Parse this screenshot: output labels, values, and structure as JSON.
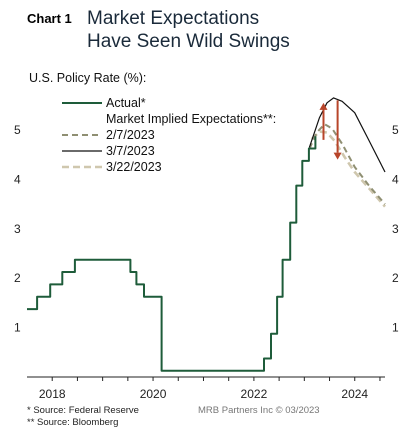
{
  "header": {
    "chart_number": "Chart 1",
    "title_lines": [
      "Market Expectations",
      "Have Seen Wild Swings"
    ]
  },
  "footnotes": [
    "*  Source: Federal Reserve",
    "** Source: Bloomberg"
  ],
  "credit": "MRB Partners Inc © 03/2023",
  "colors": {
    "actual": "#1e5c3a",
    "feb": "#8f8f72",
    "mar7": "#111111",
    "mar22": "#cfc7ae",
    "arrow": "#b8452a",
    "axis": "#222222"
  },
  "chart_data": {
    "type": "line",
    "ylabel": "U.S. Policy Rate (%):",
    "xlim": [
      2017.5,
      2024.6
    ],
    "ylim": [
      0,
      5.85
    ],
    "x_ticks": [
      2018,
      2020,
      2022,
      2024
    ],
    "x_tick_labels": [
      "2018",
      "2020",
      "2022",
      "2024"
    ],
    "y_ticks": [
      1,
      2,
      3,
      4,
      5
    ],
    "y_tick_labels": [
      "1",
      "2",
      "3",
      "4",
      "5"
    ],
    "legend_header": "Market Implied Expectations**:",
    "series": [
      {
        "name": "Actual*",
        "style": "solid-thick",
        "step": true,
        "points": [
          [
            2017.5,
            1.375
          ],
          [
            2017.7,
            1.375
          ],
          [
            2017.7,
            1.625
          ],
          [
            2017.96,
            1.625
          ],
          [
            2017.96,
            1.875
          ],
          [
            2018.2,
            1.875
          ],
          [
            2018.2,
            2.125
          ],
          [
            2018.45,
            2.125
          ],
          [
            2018.45,
            2.375
          ],
          [
            2018.98,
            2.375
          ],
          [
            2018.98,
            2.375
          ],
          [
            2019.55,
            2.375
          ],
          [
            2019.55,
            2.125
          ],
          [
            2019.67,
            2.125
          ],
          [
            2019.67,
            1.875
          ],
          [
            2019.82,
            1.875
          ],
          [
            2019.82,
            1.625
          ],
          [
            2020.17,
            1.625
          ],
          [
            2020.17,
            0.125
          ],
          [
            2022.2,
            0.125
          ],
          [
            2022.2,
            0.375
          ],
          [
            2022.34,
            0.375
          ],
          [
            2022.34,
            0.875
          ],
          [
            2022.46,
            0.875
          ],
          [
            2022.46,
            1.625
          ],
          [
            2022.57,
            1.625
          ],
          [
            2022.57,
            2.375
          ],
          [
            2022.72,
            2.375
          ],
          [
            2022.72,
            3.125
          ],
          [
            2022.84,
            3.125
          ],
          [
            2022.84,
            3.875
          ],
          [
            2022.96,
            3.875
          ],
          [
            2022.96,
            4.375
          ],
          [
            2023.09,
            4.375
          ],
          [
            2023.09,
            4.625
          ],
          [
            2023.22,
            4.625
          ],
          [
            2023.22,
            4.875
          ]
        ]
      },
      {
        "name": "2/7/2023",
        "style": "dashed",
        "points": [
          [
            2023.1,
            4.62
          ],
          [
            2023.25,
            4.95
          ],
          [
            2023.4,
            5.12
          ],
          [
            2023.55,
            5.03
          ],
          [
            2023.75,
            4.72
          ],
          [
            2024.0,
            4.25
          ],
          [
            2024.3,
            3.85
          ],
          [
            2024.6,
            3.5
          ]
        ]
      },
      {
        "name": "3/7/2023",
        "style": "solid-thin",
        "points": [
          [
            2023.1,
            4.65
          ],
          [
            2023.3,
            5.25
          ],
          [
            2023.45,
            5.55
          ],
          [
            2023.58,
            5.65
          ],
          [
            2023.75,
            5.58
          ],
          [
            2024.0,
            5.35
          ],
          [
            2024.25,
            4.85
          ],
          [
            2024.6,
            4.15
          ]
        ]
      },
      {
        "name": "3/22/2023",
        "style": "dashed-thick",
        "points": [
          [
            2023.15,
            4.82
          ],
          [
            2023.3,
            4.97
          ],
          [
            2023.45,
            4.95
          ],
          [
            2023.6,
            4.78
          ],
          [
            2023.8,
            4.45
          ],
          [
            2024.0,
            4.15
          ],
          [
            2024.3,
            3.8
          ],
          [
            2024.6,
            3.45
          ]
        ]
      }
    ],
    "annotations": [
      {
        "type": "arrow-up",
        "x": 2023.38,
        "from": 4.8,
        "to": 5.55
      },
      {
        "type": "arrow-down",
        "x": 2023.66,
        "from": 5.6,
        "to": 4.4
      }
    ]
  }
}
